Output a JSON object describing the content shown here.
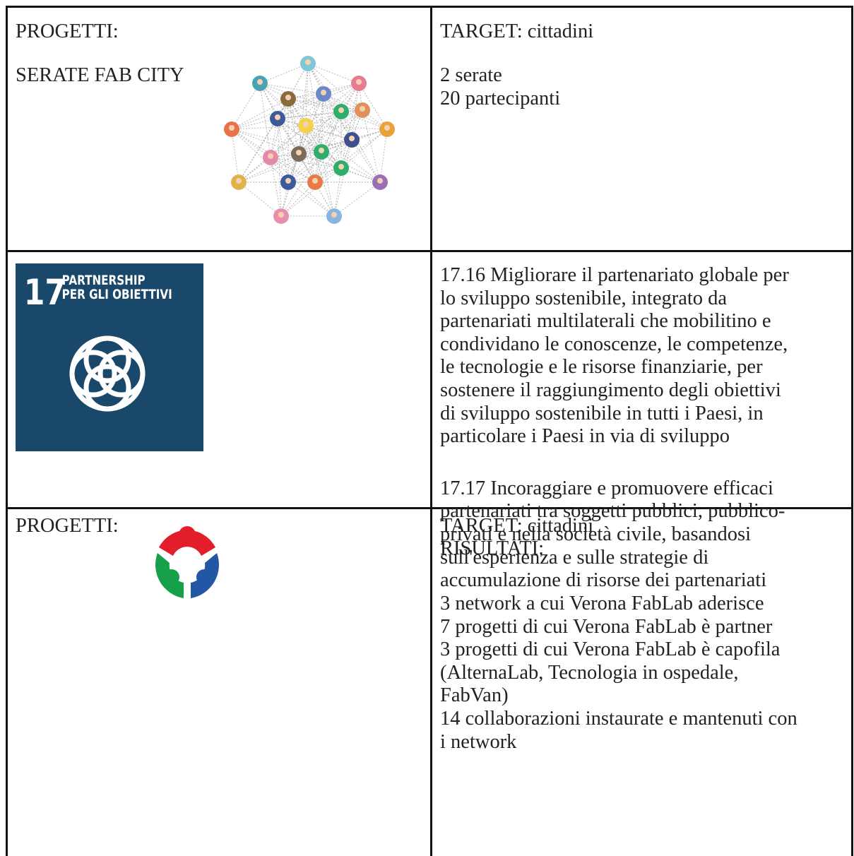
{
  "table": {
    "rows": [
      [
        {
          "heading": "PROGETTI:",
          "title": "SERATE FAB CITY"
        },
        {
          "target": "TARGET: cittadini",
          "lines": [
            "2 serate",
            "20 partecipanti"
          ]
        }
      ],
      [
        {
          "logo": {
            "number": "17",
            "label": [
              "PARTNERSHIP",
              "PER GLI OBIETTIVI"
            ]
          }
        },
        {
          "paragraphs": [
            [
              "17.16 Migliorare il partenariato globale per",
              "lo sviluppo sostenibile, integrato da",
              "partenariati multilaterali che mobilitino e",
              "condividano le conoscenze, le competenze,",
              "le tecnologie e le risorse finanziarie, per",
              "sostenere il raggiungimento degli obiettivi",
              "di sviluppo sostenibile in tutti i Paesi, in",
              "particolare i Paesi in via di sviluppo"
            ],
            [
              "17.17 Incoraggiare e promuovere efficaci",
              "partenariati tra soggetti pubblici, pubblico-",
              "privati e nella società civile, basandosi",
              "sull'esperienza e sulle strategie di",
              "accumulazione di risorse dei partenariati"
            ]
          ]
        }
      ],
      [
        {
          "heading": "PROGETTI:"
        },
        {
          "target": "TARGET: cittadini",
          "subheading": "RISULTATI:",
          "lines": [
            "3 network a cui Verona FabLab aderisce",
            "7 progetti di cui Verona FabLab è partner",
            "3 progetti di cui Verona FabLab è capofila",
            "(AlternaLab, Tecnologia in ospedale,",
            "FabVan)",
            "14 collaborazioni instaurate e mantenuti con",
            "i network"
          ]
        }
      ]
    ]
  }
}
